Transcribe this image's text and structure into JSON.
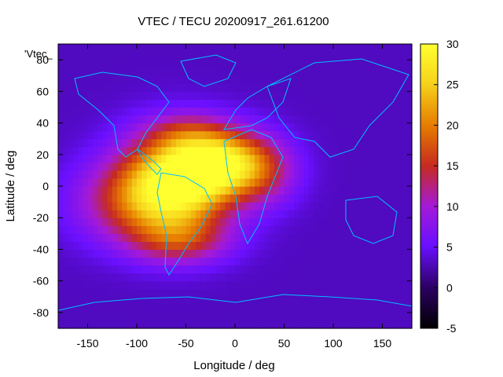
{
  "chart_data": {
    "type": "heatmap",
    "title": "VTEC / TECU 20200917_261.61200",
    "xlabel": "Longitude / deg",
    "ylabel": "Latitude / deg",
    "xlim": [
      -180,
      180
    ],
    "ylim": [
      -90,
      90
    ],
    "x_ticks": [
      -150,
      -100,
      -50,
      0,
      50,
      100,
      150
    ],
    "y_ticks": [
      -80,
      -60,
      -40,
      -20,
      0,
      20,
      40,
      60,
      80
    ],
    "colorbar": {
      "range": [
        -5,
        30
      ],
      "ticks": [
        -5,
        0,
        5,
        10,
        15,
        20,
        25,
        30
      ],
      "palette": [
        "#000000",
        "#2a0060",
        "#6a10ff",
        "#a41ad8",
        "#c62a20",
        "#e67a00",
        "#f6d21a",
        "#ffff30"
      ]
    },
    "legend_label": "'Vtec_",
    "legend_position": "top-left",
    "background_value": 3,
    "peaks": [
      {
        "lon": -60,
        "lat": 2,
        "value": 28,
        "sigma_lon": 40,
        "sigma_lat": 22
      },
      {
        "lon": -15,
        "lat": 15,
        "value": 26,
        "sigma_lon": 35,
        "sigma_lat": 14
      },
      {
        "lon": -100,
        "lat": -10,
        "value": 14,
        "sigma_lon": 45,
        "sigma_lat": 18
      },
      {
        "lon": -55,
        "lat": -35,
        "value": 12,
        "sigma_lon": 35,
        "sigma_lat": 10
      },
      {
        "lon": 30,
        "lat": 8,
        "value": 10,
        "sigma_lon": 25,
        "sigma_lat": 15
      },
      {
        "lon": -50,
        "lat": 35,
        "value": 8,
        "sigma_lon": 30,
        "sigma_lat": 8
      }
    ],
    "grid": false
  }
}
